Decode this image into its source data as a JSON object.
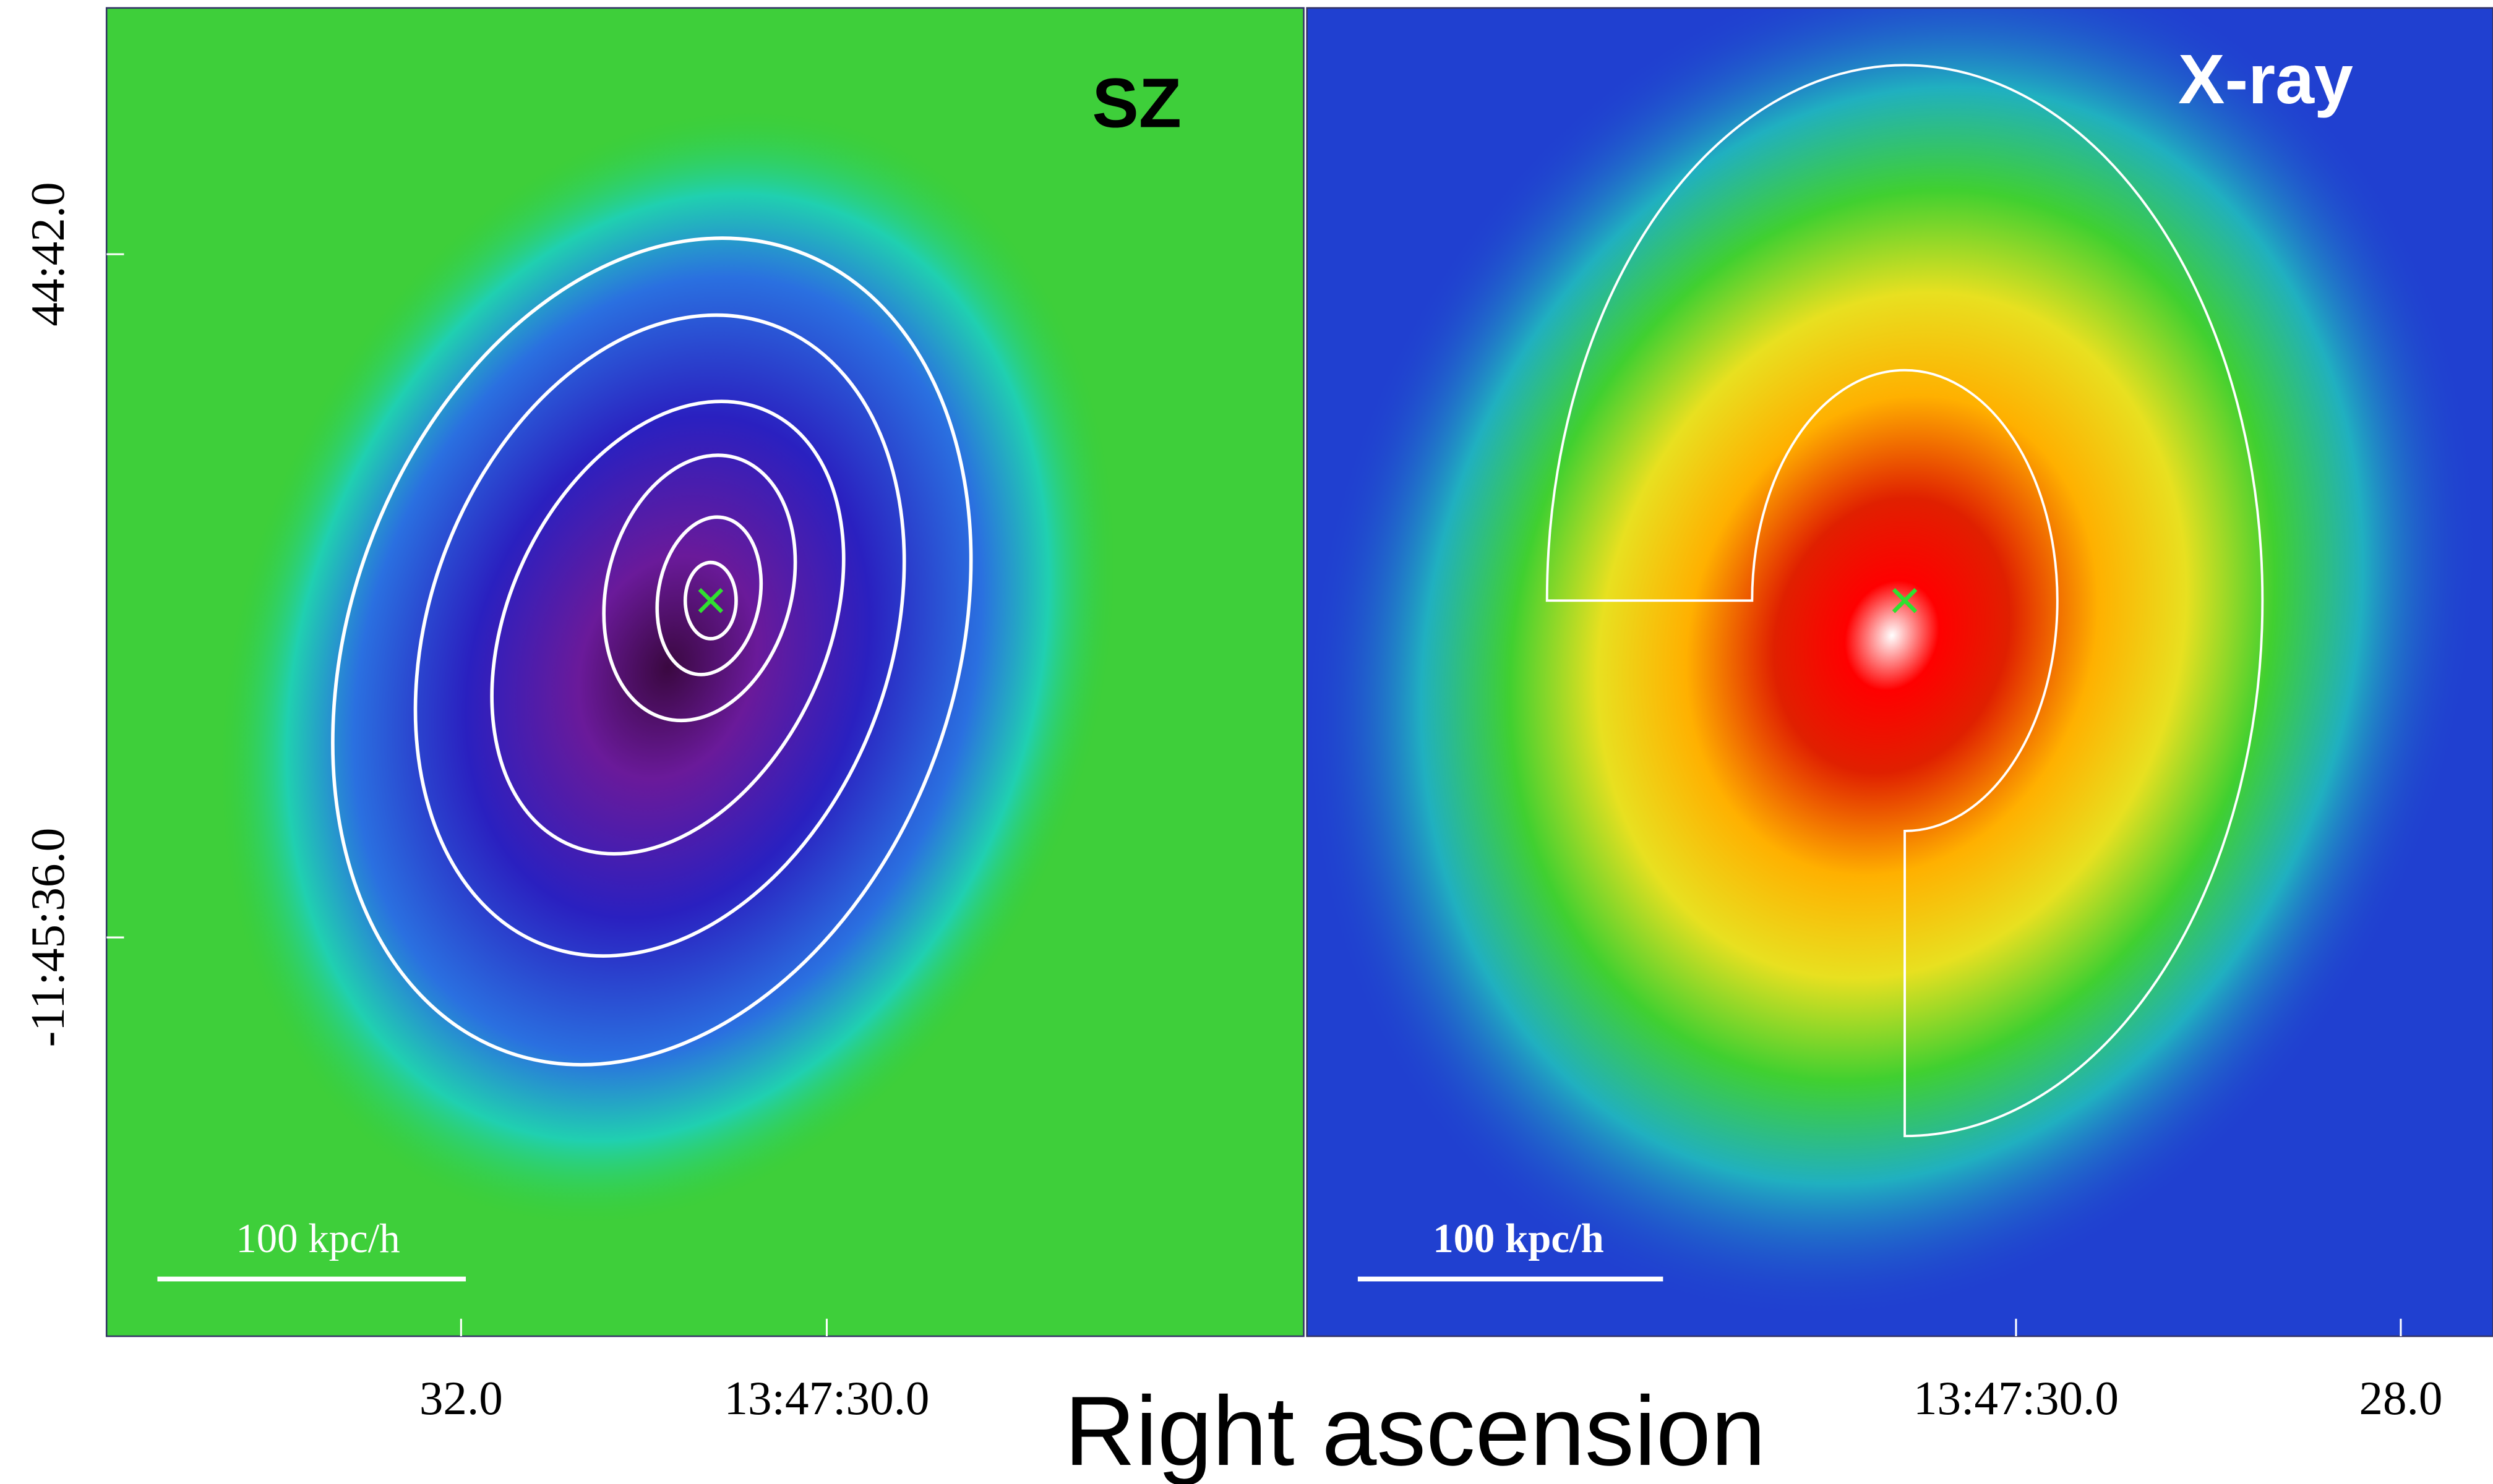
{
  "panels": [
    {
      "label": "SZ",
      "scale_bar": "100 kpc/h"
    },
    {
      "label": "X-ray",
      "scale_bar": "100 kpc/h"
    }
  ],
  "y_axis": {
    "ticks": [
      "44:42.0",
      "-11:45:36.0"
    ]
  },
  "x_axis": {
    "label": "Right ascension",
    "ticks": [
      "32.0",
      "13:47:30.0",
      "13:47:30.0",
      "28.0"
    ]
  }
}
